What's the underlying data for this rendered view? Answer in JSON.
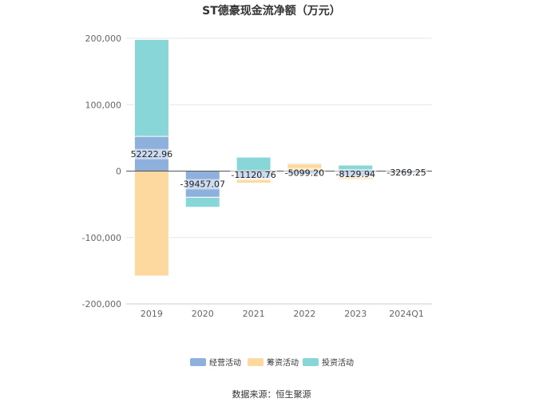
{
  "chart_data": {
    "type": "bar",
    "stacked": true,
    "title": "ST德豪现金流净额（万元）",
    "categories": [
      "2019",
      "2020",
      "2021",
      "2022",
      "2023",
      "2024Q1"
    ],
    "series": [
      {
        "name": "经营活动",
        "color": "#8eb0dd",
        "values": [
          52222.96,
          -39457.07,
          -11120.76,
          -5099.2,
          -8129.94,
          -3269.25
        ]
      },
      {
        "name": "筹资活动",
        "color": "#fdd9a0",
        "values": [
          -158000,
          0,
          -7000,
          11000,
          -5000,
          -500
        ]
      },
      {
        "name": "投资活动",
        "color": "#89d6d9",
        "values": [
          146000,
          -15000,
          21000,
          1500,
          9000,
          500
        ]
      }
    ],
    "data_labels": [
      "52222.96",
      "-39457.07",
      "-11120.76",
      "-5099.20",
      "-8129.94",
      "-3269.25"
    ],
    "yticks": [
      200000,
      100000,
      0,
      -100000,
      -200000
    ],
    "ytick_labels": [
      "200,000",
      "100,000",
      "0",
      "-100,000",
      "-200,000"
    ],
    "ylim": [
      -200000,
      200000
    ],
    "grid": true,
    "legend_position": "bottom"
  },
  "source": "数据来源：恒生聚源"
}
